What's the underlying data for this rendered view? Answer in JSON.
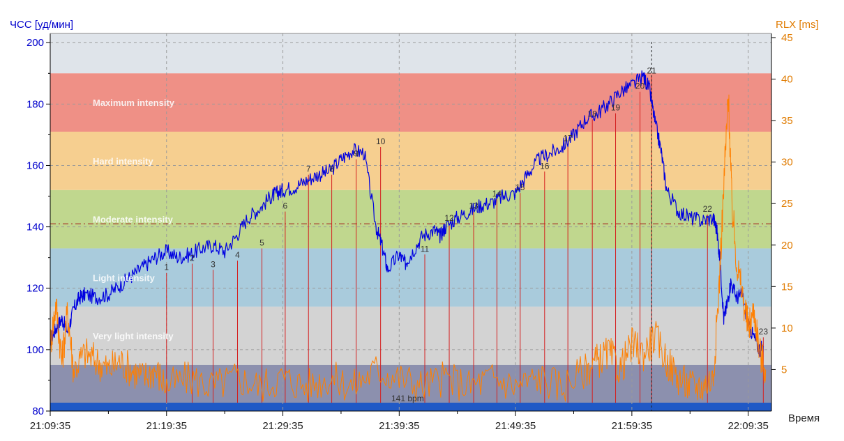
{
  "chart_data": {
    "type": "line",
    "left_axis": {
      "label": "ЧСС [уд/мин]",
      "range": [
        80,
        203
      ],
      "ticks": [
        80,
        100,
        120,
        140,
        160,
        180,
        200
      ],
      "color": "#0000cc"
    },
    "right_axis": {
      "label": "RLX [ms]",
      "range": [
        0,
        45.5
      ],
      "ticks": [
        5,
        10,
        15,
        20,
        25,
        30,
        35,
        40,
        45
      ],
      "color": "#e07b00"
    },
    "x_axis": {
      "label": "Время",
      "range_minutes": [
        0,
        62
      ],
      "tick_labels": [
        "21:09:35",
        "21:19:35",
        "21:29:35",
        "21:39:35",
        "21:49:35",
        "21:59:35",
        "22:09:35"
      ],
      "tick_minutes": [
        0,
        10,
        20,
        30,
        40,
        50,
        60
      ]
    },
    "zones": [
      {
        "name": "Very light intensity",
        "from": 95,
        "to": 114,
        "color": "#d3d3d3"
      },
      {
        "name": "Light intensity",
        "from": 114,
        "to": 133,
        "color": "#a9cbdc"
      },
      {
        "name": "Moderate intensity",
        "from": 133,
        "to": 152,
        "color": "#c0d78e"
      },
      {
        "name": "Hard intensity",
        "from": 152,
        "to": 171,
        "color": "#f6cf90"
      },
      {
        "name": "Maximum intensity",
        "from": 171,
        "to": 190,
        "color": "#ef9086"
      }
    ],
    "bands": {
      "below_95_color": "#8c90ae",
      "top_color": "#dfe4ea",
      "bottom_bar_color": "#2059c6"
    },
    "average_label": "141 bpm",
    "average_value": 141,
    "series": [
      {
        "name": "ЧСС",
        "axis": "left",
        "color": "#0000e0",
        "x": [
          0,
          0.5,
          1,
          1.5,
          2,
          2.5,
          3,
          4,
          5,
          6,
          7,
          8,
          9,
          10,
          11,
          12,
          13,
          14,
          15,
          16,
          17,
          18,
          19,
          19.5,
          20,
          21,
          22,
          23,
          24,
          25,
          26,
          27,
          28,
          28.5,
          29,
          30,
          30.5,
          31,
          32,
          33,
          33.5,
          34,
          35,
          36,
          37,
          38,
          39,
          40,
          41,
          42,
          43,
          44,
          45,
          46,
          47,
          48,
          49,
          50,
          51,
          51.5,
          52,
          52.5,
          53,
          54,
          55,
          56,
          57,
          57.3,
          57.6,
          57.9,
          58.2,
          58.5,
          59,
          59.5,
          60,
          60.5,
          61,
          61.3
        ],
        "y": [
          103,
          107,
          110,
          106,
          113,
          117,
          118,
          117,
          118,
          121,
          124,
          127,
          130,
          132,
          130,
          131,
          133,
          134,
          132,
          137,
          143,
          146,
          150,
          151,
          152,
          153,
          155,
          157,
          158,
          162,
          165,
          164,
          140,
          134,
          126,
          131,
          128,
          131,
          137,
          139,
          137,
          140,
          143,
          145,
          147,
          148,
          150,
          151,
          157,
          162,
          164,
          166,
          170,
          175,
          177,
          180,
          184,
          186,
          189,
          185,
          174,
          165,
          152,
          145,
          143,
          142,
          143,
          139,
          128,
          110,
          115,
          122,
          117,
          118,
          108,
          104,
          100,
          101
        ]
      },
      {
        "name": "RLX",
        "axis": "right",
        "color": "#ff7f00",
        "x": [
          0,
          0.5,
          1,
          1.5,
          2,
          3,
          4,
          5,
          6,
          7,
          8,
          9,
          10,
          12,
          14,
          16,
          18,
          20,
          22,
          24,
          26,
          28,
          30,
          32,
          34,
          36,
          38,
          40,
          42,
          44,
          46,
          47,
          48,
          49,
          50,
          51,
          52,
          53,
          54,
          55,
          56,
          57,
          57.5,
          58,
          58.3,
          58.6,
          59,
          59.5,
          60,
          60.5,
          61,
          61.5
        ],
        "y": [
          8,
          13,
          6,
          12,
          5,
          7,
          6,
          5,
          6,
          5,
          4,
          5,
          3,
          4,
          3,
          4,
          3,
          4,
          3,
          4,
          3,
          5,
          4,
          3,
          4,
          3,
          4,
          3,
          4,
          3,
          5,
          6,
          7,
          5,
          8,
          7,
          9,
          6,
          4,
          3,
          3,
          4,
          15,
          30,
          38,
          25,
          18,
          14,
          10,
          12,
          7,
          5
        ]
      }
    ],
    "laps": [
      {
        "label": "1",
        "x": 10.0,
        "y": 125
      },
      {
        "label": "2",
        "x": 12.2,
        "y": 128
      },
      {
        "label": "3",
        "x": 14.0,
        "y": 126
      },
      {
        "label": "4",
        "x": 16.1,
        "y": 129
      },
      {
        "label": "5",
        "x": 18.2,
        "y": 133
      },
      {
        "label": "6",
        "x": 20.2,
        "y": 145
      },
      {
        "label": "7",
        "x": 22.2,
        "y": 157
      },
      {
        "label": "8",
        "x": 24.2,
        "y": 157
      },
      {
        "label": "9",
        "x": 26.3,
        "y": 162
      },
      {
        "label": "10",
        "x": 28.4,
        "y": 166
      },
      {
        "label": "11",
        "x": 32.2,
        "y": 131
      },
      {
        "label": "12",
        "x": 34.3,
        "y": 141
      },
      {
        "label": "13",
        "x": 36.4,
        "y": 145
      },
      {
        "label": "14",
        "x": 38.4,
        "y": 149
      },
      {
        "label": "15",
        "x": 40.4,
        "y": 151
      },
      {
        "label": "16",
        "x": 42.5,
        "y": 158
      },
      {
        "label": "17",
        "x": 44.5,
        "y": 167
      },
      {
        "label": "18",
        "x": 46.6,
        "y": 175
      },
      {
        "label": "19",
        "x": 48.6,
        "y": 177
      },
      {
        "label": "20",
        "x": 50.7,
        "y": 184
      },
      {
        "label": "21",
        "x": 51.7,
        "y": 189
      },
      {
        "label": "22",
        "x": 56.5,
        "y": 144
      },
      {
        "label": "23",
        "x": 61.3,
        "y": 104
      }
    ],
    "lap_marker_color": "#d42020",
    "cursor_x": 51.7,
    "grid": true,
    "legend": "none"
  }
}
